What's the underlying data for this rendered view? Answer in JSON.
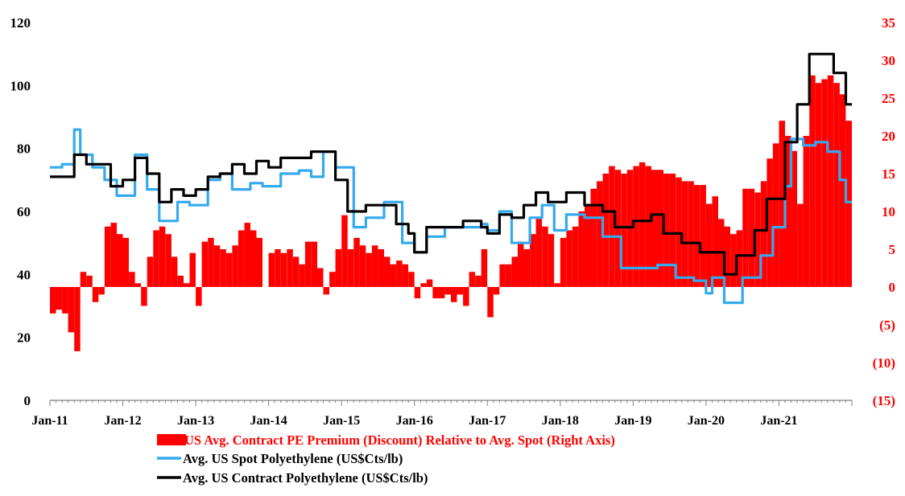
{
  "colors": {
    "premium": "#ff0000",
    "spot": "#33aaee",
    "contract": "#000000",
    "axis": "#7f7f7f",
    "right_axis_text": "#ff0000",
    "left_axis_text": "#000000"
  },
  "chart_data": {
    "type": "bar-line-combo",
    "x_range": [
      "2011-01",
      "2021-12"
    ],
    "x_ticks": [
      "Jan-11",
      "Jan-12",
      "Jan-13",
      "Jan-14",
      "Jan-15",
      "Jan-16",
      "Jan-17",
      "Jan-18",
      "Jan-19",
      "Jan-20",
      "Jan-21"
    ],
    "y_left": {
      "min": 0,
      "max": 120,
      "ticks": [
        "0",
        "20",
        "40",
        "60",
        "80",
        "100",
        "120"
      ]
    },
    "y_right": {
      "min": -15,
      "max": 35,
      "ticks": [
        "(15)",
        "(10)",
        "(5)",
        "0",
        "5",
        "10",
        "15",
        "20",
        "25",
        "30",
        "35"
      ]
    },
    "grid": false,
    "legend_position": "bottom",
    "series": [
      {
        "name": "US Avg. Contract PE Premium (Discount) Relative to Avg. Spot (Right Axis)",
        "type": "bar",
        "axis": "right",
        "color": "#ff0000",
        "points": [
          [
            "2011-01",
            -3.5
          ],
          [
            "2011-02",
            -3
          ],
          [
            "2011-03",
            -3.5
          ],
          [
            "2011-04",
            -6
          ],
          [
            "2011-05",
            -8.5
          ],
          [
            "2011-06",
            2
          ],
          [
            "2011-07",
            1.5
          ],
          [
            "2011-08",
            -2
          ],
          [
            "2011-09",
            -1
          ],
          [
            "2011-10",
            8
          ],
          [
            "2011-11",
            8.5
          ],
          [
            "2011-12",
            7
          ],
          [
            "2012-01",
            6.5
          ],
          [
            "2012-02",
            2
          ],
          [
            "2012-03",
            0.5
          ],
          [
            "2012-04",
            -2.5
          ],
          [
            "2012-05",
            4
          ],
          [
            "2012-06",
            7.5
          ],
          [
            "2012-07",
            8
          ],
          [
            "2012-08",
            7
          ],
          [
            "2012-09",
            4
          ],
          [
            "2012-10",
            1.5
          ],
          [
            "2012-11",
            0.5
          ],
          [
            "2012-12",
            4.5
          ],
          [
            "2013-01",
            -2.5
          ],
          [
            "2013-02",
            6
          ],
          [
            "2013-03",
            6.5
          ],
          [
            "2013-04",
            5.5
          ],
          [
            "2013-05",
            5
          ],
          [
            "2013-06",
            4.5
          ],
          [
            "2013-07",
            5.5
          ],
          [
            "2013-08",
            7.5
          ],
          [
            "2013-09",
            8.5
          ],
          [
            "2013-10",
            7.5
          ],
          [
            "2013-11",
            6.5
          ],
          [
            "2013-12",
            0
          ],
          [
            "2014-01",
            4.5
          ],
          [
            "2014-02",
            5
          ],
          [
            "2014-03",
            4.5
          ],
          [
            "2014-04",
            5
          ],
          [
            "2014-05",
            4
          ],
          [
            "2014-06",
            3
          ],
          [
            "2014-07",
            6
          ],
          [
            "2014-08",
            6
          ],
          [
            "2014-09",
            2.5
          ],
          [
            "2014-10",
            -1
          ],
          [
            "2014-11",
            2
          ],
          [
            "2014-12",
            5
          ],
          [
            "2015-01",
            9.5
          ],
          [
            "2015-02",
            5
          ],
          [
            "2015-03",
            6.5
          ],
          [
            "2015-04",
            5.5
          ],
          [
            "2015-05",
            4.5
          ],
          [
            "2015-06",
            5.5
          ],
          [
            "2015-07",
            5
          ],
          [
            "2015-08",
            4
          ],
          [
            "2015-09",
            3
          ],
          [
            "2015-10",
            3.5
          ],
          [
            "2015-11",
            3
          ],
          [
            "2015-12",
            2
          ],
          [
            "2016-01",
            -1.5
          ],
          [
            "2016-02",
            0.5
          ],
          [
            "2016-03",
            1
          ],
          [
            "2016-04",
            -1.5
          ],
          [
            "2016-05",
            -1.5
          ],
          [
            "2016-06",
            -1
          ],
          [
            "2016-07",
            -2
          ],
          [
            "2016-08",
            -1
          ],
          [
            "2016-09",
            -2.5
          ],
          [
            "2016-10",
            2
          ],
          [
            "2016-11",
            1.5
          ],
          [
            "2016-12",
            5
          ],
          [
            "2017-01",
            -4
          ],
          [
            "2017-02",
            -1
          ],
          [
            "2017-03",
            3
          ],
          [
            "2017-04",
            3
          ],
          [
            "2017-05",
            4
          ],
          [
            "2017-06",
            6
          ],
          [
            "2017-07",
            5
          ],
          [
            "2017-08",
            7
          ],
          [
            "2017-09",
            9
          ],
          [
            "2017-10",
            8
          ],
          [
            "2017-11",
            7
          ],
          [
            "2017-12",
            0.5
          ],
          [
            "2018-01",
            6.5
          ],
          [
            "2018-02",
            7.5
          ],
          [
            "2018-03",
            8
          ],
          [
            "2018-04",
            10
          ],
          [
            "2018-05",
            11
          ],
          [
            "2018-06",
            13
          ],
          [
            "2018-07",
            14
          ],
          [
            "2018-08",
            15
          ],
          [
            "2018-09",
            16
          ],
          [
            "2018-10",
            15.5
          ],
          [
            "2018-11",
            15
          ],
          [
            "2018-12",
            15.5
          ],
          [
            "2019-01",
            16
          ],
          [
            "2019-02",
            16.5
          ],
          [
            "2019-03",
            16
          ],
          [
            "2019-04",
            15.5
          ],
          [
            "2019-05",
            15.5
          ],
          [
            "2019-06",
            15
          ],
          [
            "2019-07",
            15
          ],
          [
            "2019-08",
            14.5
          ],
          [
            "2019-09",
            14
          ],
          [
            "2019-10",
            14
          ],
          [
            "2019-11",
            13.5
          ],
          [
            "2019-12",
            13.5
          ],
          [
            "2020-01",
            11
          ],
          [
            "2020-02",
            12
          ],
          [
            "2020-03",
            9
          ],
          [
            "2020-04",
            8
          ],
          [
            "2020-05",
            7
          ],
          [
            "2020-06",
            7.5
          ],
          [
            "2020-07",
            13
          ],
          [
            "2020-08",
            13
          ],
          [
            "2020-09",
            12.5
          ],
          [
            "2020-10",
            14
          ],
          [
            "2020-11",
            17
          ],
          [
            "2020-12",
            19
          ],
          [
            "2021-01",
            22
          ],
          [
            "2021-02",
            20
          ],
          [
            "2021-03",
            18
          ],
          [
            "2021-04",
            11
          ],
          [
            "2021-05",
            20
          ],
          [
            "2021-06",
            28
          ],
          [
            "2021-07",
            27
          ],
          [
            "2021-08",
            27.5
          ],
          [
            "2021-09",
            28
          ],
          [
            "2021-10",
            27
          ],
          [
            "2021-11",
            25.5
          ],
          [
            "2021-12",
            22
          ]
        ]
      },
      {
        "name": "Avg. US Spot Polyethylene (US$Cts/lb)",
        "type": "line",
        "axis": "left",
        "color": "#33aaee",
        "points": [
          [
            "2011-01",
            74
          ],
          [
            "2011-03",
            75
          ],
          [
            "2011-05",
            86
          ],
          [
            "2011-06",
            78
          ],
          [
            "2011-08",
            74
          ],
          [
            "2011-10",
            70
          ],
          [
            "2011-12",
            65
          ],
          [
            "2012-03",
            78
          ],
          [
            "2012-05",
            67
          ],
          [
            "2012-07",
            57
          ],
          [
            "2012-10",
            63
          ],
          [
            "2012-12",
            62
          ],
          [
            "2013-03",
            70
          ],
          [
            "2013-05",
            72
          ],
          [
            "2013-07",
            67
          ],
          [
            "2013-10",
            69
          ],
          [
            "2013-12",
            68
          ],
          [
            "2014-03",
            72
          ],
          [
            "2014-06",
            73
          ],
          [
            "2014-08",
            71
          ],
          [
            "2014-10",
            79
          ],
          [
            "2014-12",
            74
          ],
          [
            "2015-03",
            55
          ],
          [
            "2015-05",
            58
          ],
          [
            "2015-08",
            63
          ],
          [
            "2015-11",
            50
          ],
          [
            "2016-01",
            47
          ],
          [
            "2016-03",
            52
          ],
          [
            "2016-06",
            55
          ],
          [
            "2016-09",
            55
          ],
          [
            "2016-12",
            56
          ],
          [
            "2017-01",
            54
          ],
          [
            "2017-03",
            60
          ],
          [
            "2017-05",
            50
          ],
          [
            "2017-08",
            58
          ],
          [
            "2017-10",
            62
          ],
          [
            "2017-12",
            54
          ],
          [
            "2018-02",
            59
          ],
          [
            "2018-05",
            58
          ],
          [
            "2018-08",
            52
          ],
          [
            "2018-11",
            42
          ],
          [
            "2019-02",
            42
          ],
          [
            "2019-05",
            43
          ],
          [
            "2019-08",
            39
          ],
          [
            "2019-11",
            38
          ],
          [
            "2020-01",
            34
          ],
          [
            "2020-02",
            39
          ],
          [
            "2020-04",
            31
          ],
          [
            "2020-07",
            39
          ],
          [
            "2020-10",
            46
          ],
          [
            "2020-12",
            55
          ],
          [
            "2021-02",
            68
          ],
          [
            "2021-03",
            83
          ],
          [
            "2021-05",
            81
          ],
          [
            "2021-07",
            82
          ],
          [
            "2021-09",
            79
          ],
          [
            "2021-11",
            70
          ],
          [
            "2021-12",
            63
          ]
        ]
      },
      {
        "name": "Avg. US Contract Polyethylene (US$Cts/lb)",
        "type": "line",
        "axis": "left",
        "color": "#000000",
        "points": [
          [
            "2011-01",
            71
          ],
          [
            "2011-04",
            71
          ],
          [
            "2011-05",
            78
          ],
          [
            "2011-07",
            75
          ],
          [
            "2011-09",
            75
          ],
          [
            "2011-11",
            68
          ],
          [
            "2012-01",
            70
          ],
          [
            "2012-03",
            77
          ],
          [
            "2012-05",
            72
          ],
          [
            "2012-07",
            63
          ],
          [
            "2012-09",
            67
          ],
          [
            "2012-11",
            65
          ],
          [
            "2013-01",
            67
          ],
          [
            "2013-03",
            71
          ],
          [
            "2013-05",
            72
          ],
          [
            "2013-07",
            75
          ],
          [
            "2013-09",
            72
          ],
          [
            "2013-11",
            76
          ],
          [
            "2014-01",
            74
          ],
          [
            "2014-03",
            77
          ],
          [
            "2014-06",
            77
          ],
          [
            "2014-08",
            79
          ],
          [
            "2014-10",
            79
          ],
          [
            "2014-12",
            70
          ],
          [
            "2015-02",
            60
          ],
          [
            "2015-05",
            62
          ],
          [
            "2015-08",
            62
          ],
          [
            "2015-10",
            56
          ],
          [
            "2015-12",
            53
          ],
          [
            "2016-01",
            47
          ],
          [
            "2016-03",
            55
          ],
          [
            "2016-06",
            55
          ],
          [
            "2016-09",
            57
          ],
          [
            "2016-12",
            55
          ],
          [
            "2017-01",
            53
          ],
          [
            "2017-03",
            59
          ],
          [
            "2017-05",
            58
          ],
          [
            "2017-07",
            62
          ],
          [
            "2017-09",
            66
          ],
          [
            "2017-11",
            63
          ],
          [
            "2018-02",
            66
          ],
          [
            "2018-05",
            62
          ],
          [
            "2018-08",
            60
          ],
          [
            "2018-10",
            55
          ],
          [
            "2019-01",
            57
          ],
          [
            "2019-04",
            59
          ],
          [
            "2019-06",
            53
          ],
          [
            "2019-09",
            50
          ],
          [
            "2019-12",
            47
          ],
          [
            "2020-02",
            47
          ],
          [
            "2020-04",
            40
          ],
          [
            "2020-06",
            46
          ],
          [
            "2020-09",
            54
          ],
          [
            "2020-11",
            64
          ],
          [
            "2021-02",
            82
          ],
          [
            "2021-04",
            94
          ],
          [
            "2021-06",
            110
          ],
          [
            "2021-08",
            110
          ],
          [
            "2021-10",
            104
          ],
          [
            "2021-12",
            94
          ]
        ]
      }
    ]
  }
}
